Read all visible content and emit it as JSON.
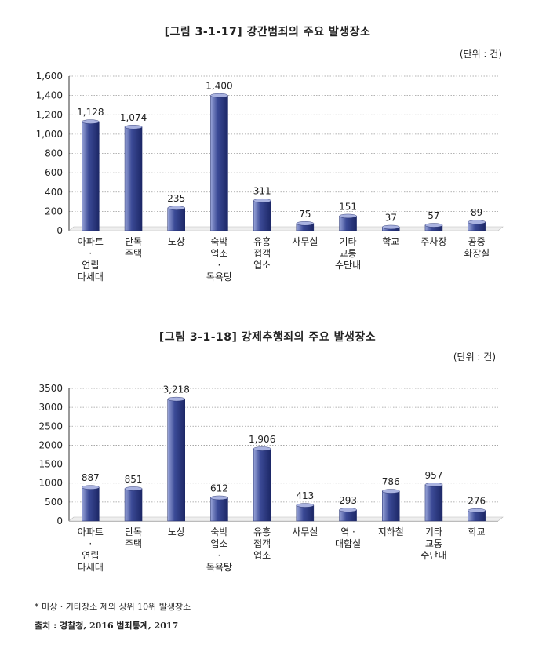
{
  "chart_data": [
    {
      "type": "bar",
      "title": "[그림 3-1-17] 강간범죄의 주요 발생장소",
      "unit": "(단위 : 건)",
      "categories": [
        [
          "아파트",
          "·",
          "연립",
          "다세대"
        ],
        [
          "단독",
          "주택"
        ],
        [
          "노상"
        ],
        [
          "숙박",
          "업소",
          "·",
          "목욕탕"
        ],
        [
          "유흥",
          "접객",
          "업소"
        ],
        [
          "사무실"
        ],
        [
          "기타",
          "교통",
          "수단내"
        ],
        [
          "학교"
        ],
        [
          "주차장"
        ],
        [
          "공중",
          "화장실"
        ]
      ],
      "values": [
        1128,
        1074,
        235,
        1400,
        311,
        75,
        151,
        37,
        57,
        89
      ],
      "value_labels": [
        "1,128",
        "1,074",
        "235",
        "1,400",
        "311",
        "75",
        "151",
        "37",
        "57",
        "89"
      ],
      "ylim": [
        0,
        1600
      ],
      "yticks": [
        "0",
        "200",
        "400",
        "600",
        "800",
        "1,000",
        "1,200",
        "1,400",
        "1,600"
      ],
      "grid": "dotted",
      "color": "#3b4a96"
    },
    {
      "type": "bar",
      "title": "[그림 3-1-18] 강제추행죄의 주요 발생장소",
      "unit": "(단위 : 건)",
      "categories": [
        [
          "아파트",
          "·",
          "연립",
          "다세대"
        ],
        [
          "단독",
          "주택"
        ],
        [
          "노상"
        ],
        [
          "숙박",
          "업소",
          "·",
          "목욕탕"
        ],
        [
          "유흥",
          "접객",
          "업소"
        ],
        [
          "사무실"
        ],
        [
          "역 ·",
          "대합실"
        ],
        [
          "지하철"
        ],
        [
          "기타",
          "교통",
          "수단내"
        ],
        [
          "학교"
        ]
      ],
      "values": [
        887,
        851,
        3218,
        612,
        1906,
        413,
        293,
        786,
        957,
        276
      ],
      "value_labels": [
        "887",
        "851",
        "3,218",
        "612",
        "1,906",
        "413",
        "293",
        "786",
        "957",
        "276"
      ],
      "ylim": [
        0,
        3500
      ],
      "yticks": [
        "0",
        "500",
        "1000",
        "1500",
        "2000",
        "2500",
        "3000",
        "3500"
      ],
      "grid": "dotted",
      "color": "#3b4a96"
    }
  ],
  "footnote": "* 미상 · 기타장소 제외 상위 10위 발생장소",
  "source": "출처 : 경찰청, 2016 범죄통계, 2017"
}
